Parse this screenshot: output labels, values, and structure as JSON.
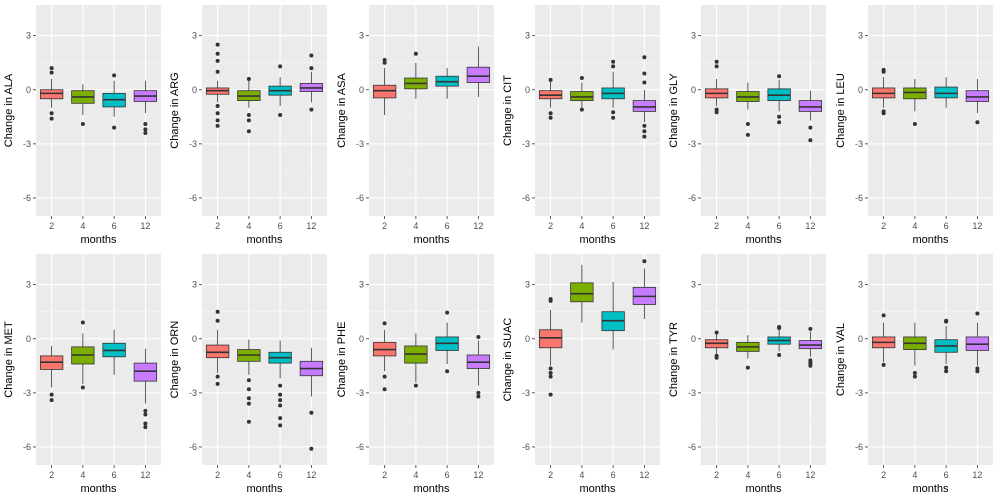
{
  "chart_data": {
    "type": "boxplot",
    "layout": {
      "rows": 2,
      "cols": 6
    },
    "xlabel": "months",
    "categories": [
      "2",
      "4",
      "6",
      "12"
    ],
    "y_ticks": [
      3,
      0,
      -3,
      -6
    ],
    "y_tick_labels": [
      "3",
      "0",
      "-3",
      "-6"
    ],
    "ylim": [
      -7,
      4.7
    ],
    "grid": true,
    "legend": "none",
    "colors": {
      "2": "#F8766D",
      "4": "#7CAE00",
      "6": "#00BFC4",
      "12": "#C77CFF"
    },
    "panels": [
      {
        "ylabel": "Change in ALA",
        "boxes": [
          {
            "q1": -0.5,
            "median": -0.2,
            "q3": 0.0,
            "lo": -1.0,
            "hi": 0.6,
            "outliers": [
              1.2,
              0.95,
              -1.3,
              -1.6
            ]
          },
          {
            "q1": -0.75,
            "median": -0.4,
            "q3": -0.05,
            "lo": -1.4,
            "hi": 0.3,
            "outliers": [
              -1.9
            ]
          },
          {
            "q1": -0.95,
            "median": -0.55,
            "q3": -0.2,
            "lo": -1.5,
            "hi": 0.5,
            "outliers": [
              0.8,
              -2.1
            ]
          },
          {
            "q1": -0.65,
            "median": -0.35,
            "q3": -0.05,
            "lo": -1.3,
            "hi": 0.5,
            "outliers": [
              -1.9,
              -2.2,
              -2.4
            ]
          }
        ]
      },
      {
        "ylabel": "Change in ARG",
        "boxes": [
          {
            "q1": -0.25,
            "median": -0.05,
            "q3": 0.1,
            "lo": -0.7,
            "hi": 0.5,
            "outliers": [
              2.5,
              2.0,
              1.6,
              1.0,
              -0.9,
              -1.3,
              -1.7,
              -2.0
            ]
          },
          {
            "q1": -0.6,
            "median": -0.35,
            "q3": -0.05,
            "lo": -1.0,
            "hi": 0.5,
            "outliers": [
              0.6,
              -1.4,
              -1.7,
              -2.3
            ]
          },
          {
            "q1": -0.3,
            "median": -0.05,
            "q3": 0.2,
            "lo": -0.9,
            "hi": 0.7,
            "outliers": [
              1.3,
              -1.4
            ]
          },
          {
            "q1": -0.1,
            "median": 0.1,
            "q3": 0.35,
            "lo": -0.7,
            "hi": 1.0,
            "outliers": [
              1.9,
              1.2,
              -1.1
            ]
          }
        ]
      },
      {
        "ylabel": "Change in ASA",
        "boxes": [
          {
            "q1": -0.45,
            "median": -0.05,
            "q3": 0.25,
            "lo": -1.4,
            "hi": 1.2,
            "outliers": [
              1.65,
              1.5
            ]
          },
          {
            "q1": 0.05,
            "median": 0.35,
            "q3": 0.65,
            "lo": -0.5,
            "hi": 1.5,
            "outliers": [
              2.0
            ]
          },
          {
            "q1": 0.2,
            "median": 0.45,
            "q3": 0.75,
            "lo": -0.5,
            "hi": 1.2,
            "outliers": []
          },
          {
            "q1": 0.4,
            "median": 0.75,
            "q3": 1.25,
            "lo": -0.4,
            "hi": 2.4,
            "outliers": []
          }
        ]
      },
      {
        "ylabel": "Change in CIT",
        "boxes": [
          {
            "q1": -0.5,
            "median": -0.3,
            "q3": -0.05,
            "lo": -1.0,
            "hi": 0.5,
            "outliers": [
              0.55,
              -1.3,
              -1.55
            ]
          },
          {
            "q1": -0.6,
            "median": -0.4,
            "q3": -0.1,
            "lo": -1.0,
            "hi": 0.4,
            "outliers": [
              0.65,
              -1.1
            ]
          },
          {
            "q1": -0.5,
            "median": -0.2,
            "q3": 0.1,
            "lo": -1.0,
            "hi": 1.0,
            "outliers": [
              1.55,
              1.3,
              -1.25,
              -1.55
            ]
          },
          {
            "q1": -1.2,
            "median": -0.95,
            "q3": -0.6,
            "lo": -1.8,
            "hi": 0.0,
            "outliers": [
              1.8,
              0.9,
              0.4,
              -2.0,
              -2.3,
              -2.6
            ]
          }
        ]
      },
      {
        "ylabel": "Change in GLY",
        "boxes": [
          {
            "q1": -0.45,
            "median": -0.2,
            "q3": 0.05,
            "lo": -0.9,
            "hi": 0.6,
            "outliers": [
              1.55,
              1.3,
              -1.1,
              -1.25
            ]
          },
          {
            "q1": -0.65,
            "median": -0.4,
            "q3": -0.1,
            "lo": -1.1,
            "hi": 0.4,
            "outliers": [
              -1.9,
              -2.5
            ]
          },
          {
            "q1": -0.6,
            "median": -0.3,
            "q3": 0.05,
            "lo": -1.2,
            "hi": 0.55,
            "outliers": [
              0.75,
              -1.5,
              -1.8
            ]
          },
          {
            "q1": -1.2,
            "median": -0.95,
            "q3": -0.6,
            "lo": -1.7,
            "hi": -0.05,
            "outliers": [
              -2.1,
              -2.8
            ]
          }
        ]
      },
      {
        "ylabel": "Change in LEU",
        "boxes": [
          {
            "q1": -0.45,
            "median": -0.2,
            "q3": 0.1,
            "lo": -1.0,
            "hi": 0.7,
            "outliers": [
              1.1,
              1.0,
              -1.2,
              -1.3
            ]
          },
          {
            "q1": -0.5,
            "median": -0.15,
            "q3": 0.1,
            "lo": -1.2,
            "hi": 0.6,
            "outliers": [
              -1.9
            ]
          },
          {
            "q1": -0.45,
            "median": -0.2,
            "q3": 0.15,
            "lo": -1.0,
            "hi": 0.7,
            "outliers": []
          },
          {
            "q1": -0.65,
            "median": -0.4,
            "q3": -0.05,
            "lo": -1.3,
            "hi": 0.6,
            "outliers": [
              -1.8
            ]
          }
        ]
      },
      {
        "ylabel": "Change in MET",
        "boxes": [
          {
            "q1": -1.7,
            "median": -1.3,
            "q3": -0.95,
            "lo": -2.7,
            "hi": -0.4,
            "outliers": [
              -3.1,
              -3.4
            ]
          },
          {
            "q1": -1.4,
            "median": -0.9,
            "q3": -0.45,
            "lo": -2.5,
            "hi": 0.3,
            "outliers": [
              0.9,
              -2.7
            ]
          },
          {
            "q1": -1.0,
            "median": -0.65,
            "q3": -0.25,
            "lo": -2.0,
            "hi": 0.5,
            "outliers": []
          },
          {
            "q1": -2.35,
            "median": -1.8,
            "q3": -1.35,
            "lo": -3.6,
            "hi": -0.55,
            "outliers": [
              -4.0,
              -4.2,
              -4.7,
              -4.9
            ]
          }
        ]
      },
      {
        "ylabel": "Change in ORN",
        "boxes": [
          {
            "q1": -1.05,
            "median": -0.75,
            "q3": -0.35,
            "lo": -1.9,
            "hi": 0.5,
            "outliers": [
              1.5,
              1.0,
              -2.1,
              -2.5
            ]
          },
          {
            "q1": -1.25,
            "median": -0.9,
            "q3": -0.6,
            "lo": -2.0,
            "hi": -0.05,
            "outliers": [
              -2.3,
              -2.8,
              -3.3,
              -3.6,
              -4.6
            ]
          },
          {
            "q1": -1.35,
            "median": -1.05,
            "q3": -0.75,
            "lo": -2.2,
            "hi": -0.1,
            "outliers": [
              -2.6,
              -3.1,
              -3.4,
              -3.7,
              -4.4,
              -4.8
            ]
          },
          {
            "q1": -2.05,
            "median": -1.65,
            "q3": -1.25,
            "lo": -3.2,
            "hi": -0.5,
            "outliers": [
              -4.1,
              -6.1
            ]
          }
        ]
      },
      {
        "ylabel": "Change in PHE",
        "boxes": [
          {
            "q1": -0.95,
            "median": -0.6,
            "q3": -0.2,
            "lo": -1.8,
            "hi": 0.5,
            "outliers": [
              0.85,
              -2.1,
              -2.8
            ]
          },
          {
            "q1": -1.35,
            "median": -0.85,
            "q3": -0.4,
            "lo": -2.4,
            "hi": 0.3,
            "outliers": [
              -2.6
            ]
          },
          {
            "q1": -0.65,
            "median": -0.25,
            "q3": 0.1,
            "lo": -1.4,
            "hi": 0.9,
            "outliers": [
              1.45,
              -1.8
            ]
          },
          {
            "q1": -1.65,
            "median": -1.3,
            "q3": -0.9,
            "lo": -2.6,
            "hi": -0.1,
            "outliers": [
              0.1,
              -3.0,
              -3.2
            ]
          }
        ]
      },
      {
        "ylabel": "Change in SUAC",
        "boxes": [
          {
            "q1": -0.5,
            "median": 0.05,
            "q3": 0.5,
            "lo": -1.5,
            "hi": 1.6,
            "outliers": [
              2.2,
              2.1,
              -1.65,
              -1.9,
              -2.1,
              -3.1
            ]
          },
          {
            "q1": 2.05,
            "median": 2.5,
            "q3": 3.1,
            "lo": 0.9,
            "hi": 4.1,
            "outliers": []
          },
          {
            "q1": 0.45,
            "median": 1.0,
            "q3": 1.5,
            "lo": -0.6,
            "hi": 3.15,
            "outliers": []
          },
          {
            "q1": 1.9,
            "median": 2.35,
            "q3": 2.85,
            "lo": 1.1,
            "hi": 3.9,
            "outliers": [
              4.3
            ]
          }
        ]
      },
      {
        "ylabel": "Change in TYR",
        "boxes": [
          {
            "q1": -0.5,
            "median": -0.25,
            "q3": -0.05,
            "lo": -0.85,
            "hi": 0.3,
            "outliers": [
              0.35,
              -0.95,
              -1.05
            ]
          },
          {
            "q1": -0.7,
            "median": -0.45,
            "q3": -0.2,
            "lo": -1.1,
            "hi": 0.2,
            "outliers": [
              -1.6
            ]
          },
          {
            "q1": -0.3,
            "median": -0.1,
            "q3": 0.1,
            "lo": -0.7,
            "hi": 0.5,
            "outliers": [
              0.65,
              0.6,
              -0.9
            ]
          },
          {
            "q1": -0.55,
            "median": -0.35,
            "q3": -0.1,
            "lo": -1.0,
            "hi": 0.4,
            "outliers": [
              0.55,
              -1.2,
              -1.3,
              -1.4,
              -1.5
            ]
          }
        ]
      },
      {
        "ylabel": "Change in VAL",
        "boxes": [
          {
            "q1": -0.5,
            "median": -0.2,
            "q3": 0.1,
            "lo": -1.3,
            "hi": 0.9,
            "outliers": [
              1.3,
              -1.45
            ]
          },
          {
            "q1": -0.6,
            "median": -0.25,
            "q3": 0.1,
            "lo": -1.5,
            "hi": 0.9,
            "outliers": [
              -1.9,
              -2.1
            ]
          },
          {
            "q1": -0.75,
            "median": -0.4,
            "q3": -0.05,
            "lo": -1.4,
            "hi": 0.7,
            "outliers": [
              1.0,
              0.95,
              -1.6,
              -1.8
            ]
          },
          {
            "q1": -0.65,
            "median": -0.3,
            "q3": 0.1,
            "lo": -1.5,
            "hi": 0.9,
            "outliers": [
              1.4,
              -1.65,
              -1.8
            ]
          }
        ]
      }
    ]
  }
}
